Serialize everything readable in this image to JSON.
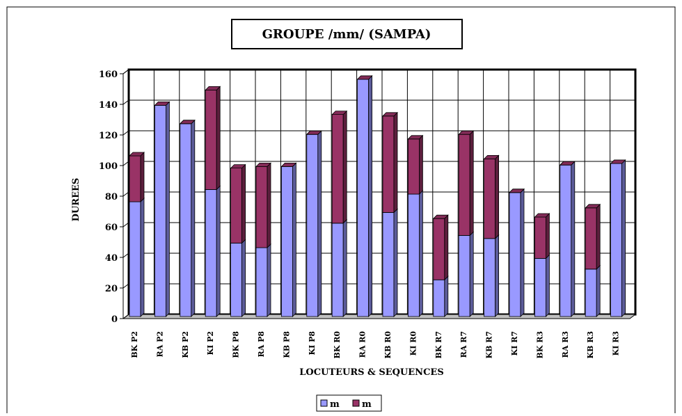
{
  "chart_data": {
    "type": "bar",
    "stacked": true,
    "title": "GROUPE /mm/ (SAMPA)",
    "x_label": "LOCUTEURS & SEQUENCES",
    "y_label": "DUREES",
    "categories": [
      "BK P2",
      "RA P2",
      "KB P2",
      "KI P2",
      "BK P8",
      "RA P8",
      "KB P8",
      "KI P8",
      "BK R0",
      "RA R0",
      "KB R0",
      "KI R0",
      "BK R7",
      "RA R7",
      "KB R7",
      "KI R7",
      "BK R3",
      "RA R3",
      "KB R3",
      "KI R3"
    ],
    "series": [
      {
        "name": "m",
        "color": "#9999ff",
        "values": [
          75,
          138,
          126,
          83,
          48,
          45,
          98,
          119,
          61,
          155,
          68,
          80,
          24,
          53,
          51,
          81,
          38,
          99,
          31,
          100
        ]
      },
      {
        "name": "m",
        "color": "#993366",
        "values": [
          30,
          0,
          0,
          65,
          49,
          53,
          0,
          0,
          71,
          0,
          63,
          36,
          40,
          66,
          52,
          0,
          27,
          0,
          40,
          0
        ]
      }
    ],
    "ylim": [
      0,
      160
    ],
    "yticks": [
      0,
      20,
      40,
      60,
      80,
      100,
      120,
      140,
      160
    ],
    "grid": true,
    "legend": "bottom"
  }
}
